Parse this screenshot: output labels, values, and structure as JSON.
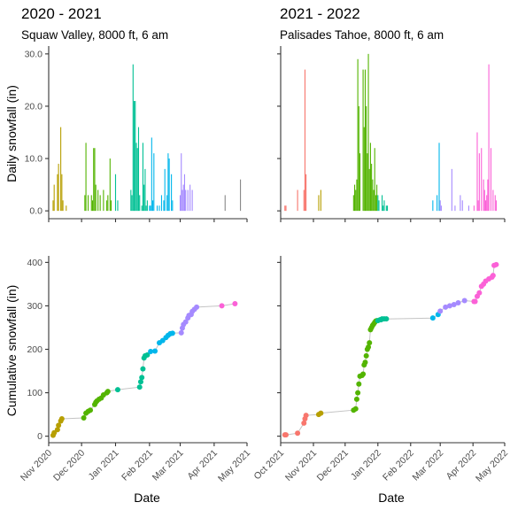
{
  "panels": [
    {
      "title": "2020 - 2021",
      "subtitle": "Squaw Valley, 8000 ft, 6 am"
    },
    {
      "title": "2021 - 2022",
      "subtitle": "Palisades Tahoe, 8000 ft, 6 am"
    }
  ],
  "chart_data": [
    {
      "type": "bar",
      "title": "2020 - 2021",
      "subtitle": "Squaw Valley, 8000 ft, 6 am",
      "xlabel": "",
      "ylabel": "Daily snowfall (in)",
      "ylim": [
        -1.5,
        31.5
      ],
      "yticks": [
        "0.0",
        "10.0",
        "20.0",
        "30.0"
      ],
      "xlim": [
        "2020-11-01",
        "2021-05-01"
      ],
      "colors_by_month": {
        "Nov": "#b79f00",
        "Dec": "#53b400",
        "Jan": "#00c094",
        "Feb": "#00b6eb",
        "Mar": "#a58aff"
      },
      "x": [
        "2020-11-05",
        "2020-11-06",
        "2020-11-09",
        "2020-11-10",
        "2020-11-12",
        "2020-11-13",
        "2020-11-14",
        "2020-11-17",
        "2020-12-04",
        "2020-12-05",
        "2020-12-07",
        "2020-12-10",
        "2020-12-11",
        "2020-12-12",
        "2020-12-13",
        "2020-12-14",
        "2020-12-16",
        "2020-12-18",
        "2020-12-21",
        "2020-12-24",
        "2020-12-25",
        "2020-12-27",
        "2020-12-28",
        "2021-01-01",
        "2021-01-03",
        "2021-01-15",
        "2021-01-16",
        "2021-01-17",
        "2021-01-18",
        "2021-01-19",
        "2021-01-20",
        "2021-01-21",
        "2021-01-22",
        "2021-01-23",
        "2021-01-25",
        "2021-01-26",
        "2021-01-27",
        "2021-01-28",
        "2021-01-29",
        "2021-01-30",
        "2021-02-01",
        "2021-02-02",
        "2021-02-03",
        "2021-02-04",
        "2021-02-05",
        "2021-02-08",
        "2021-02-10",
        "2021-02-12",
        "2021-02-14",
        "2021-02-15",
        "2021-02-17",
        "2021-02-18",
        "2021-02-19",
        "2021-02-21",
        "2021-02-22",
        "2021-03-01",
        "2021-03-02",
        "2021-03-03",
        "2021-03-04",
        "2021-03-05",
        "2021-03-06",
        "2021-03-08",
        "2021-03-10",
        "2021-03-12",
        "2021-04-11",
        "2021-04-25"
      ],
      "values": [
        2,
        5,
        7,
        9,
        16,
        7,
        2,
        1,
        3,
        13,
        3,
        3,
        2,
        12,
        12,
        5,
        4,
        3,
        4,
        2,
        3,
        10,
        2,
        7,
        2,
        4,
        3,
        28,
        21,
        21,
        13,
        12,
        16,
        3,
        1,
        13,
        5,
        8,
        1,
        2,
        1,
        1,
        14,
        2,
        11,
        1,
        1,
        3,
        2,
        8,
        3,
        11,
        10,
        7,
        2,
        3,
        11,
        4,
        5,
        7,
        4,
        4,
        5,
        4,
        3,
        6
      ]
    },
    {
      "type": "bar",
      "title": "2021 - 2022",
      "subtitle": "Palisades Tahoe, 8000 ft, 6 am",
      "xlabel": "",
      "ylabel": "Daily snowfall (in)",
      "ylim": [
        -1.5,
        31.5
      ],
      "yticks": [
        "0.0",
        "10.0",
        "20.0",
        "30.0"
      ],
      "xlim": [
        "2021-10-01",
        "2022-05-01"
      ],
      "colors_by_month": {
        "Oct": "#f8766d",
        "Nov": "#b79f00",
        "Dec": "#53b400",
        "Jan": "#00c094",
        "Feb": "#00b6eb",
        "Mar": "#a58aff",
        "Apr": "#fb61d7"
      },
      "x": [
        "2021-10-05",
        "2021-10-06",
        "2021-10-17",
        "2021-10-23",
        "2021-10-24",
        "2021-10-25",
        "2021-11-06",
        "2021-11-08",
        "2021-12-09",
        "2021-12-10",
        "2021-12-11",
        "2021-12-12",
        "2021-12-13",
        "2021-12-14",
        "2021-12-15",
        "2021-12-18",
        "2021-12-19",
        "2021-12-20",
        "2021-12-21",
        "2021-12-22",
        "2021-12-23",
        "2021-12-24",
        "2021-12-25",
        "2021-12-26",
        "2021-12-27",
        "2021-12-28",
        "2021-12-29",
        "2021-12-30",
        "2021-12-31",
        "2022-01-01",
        "2022-01-02",
        "2022-01-05",
        "2022-01-06",
        "2022-01-07",
        "2022-01-09",
        "2022-01-10",
        "2022-02-22",
        "2022-02-26",
        "2022-02-28",
        "2022-03-01",
        "2022-03-02",
        "2022-03-12",
        "2022-03-15",
        "2022-03-20",
        "2022-03-22",
        "2022-03-28",
        "2022-04-02",
        "2022-04-05",
        "2022-04-06",
        "2022-04-07",
        "2022-04-09",
        "2022-04-11",
        "2022-04-12",
        "2022-04-13",
        "2022-04-14",
        "2022-04-15",
        "2022-04-16",
        "2022-04-18",
        "2022-04-20",
        "2022-04-22",
        "2022-04-23"
      ],
      "values": [
        1,
        1,
        4,
        4,
        27,
        7,
        3,
        4,
        3,
        5,
        4,
        6,
        29,
        20,
        11,
        27,
        16,
        27,
        20,
        11,
        30,
        8,
        13,
        9,
        6,
        4,
        12,
        3,
        5,
        3,
        2,
        3,
        1,
        2,
        1,
        1,
        2,
        3,
        13,
        2,
        1,
        8,
        1,
        3,
        2,
        1,
        1,
        15,
        2,
        11,
        12,
        6,
        4,
        2,
        3,
        6,
        28,
        12,
        4,
        3,
        2
      ]
    },
    {
      "type": "scatter",
      "title": "2020 - 2021",
      "subtitle": "Squaw Valley, 8000 ft, 6 am",
      "xlabel": "Date",
      "ylabel": "Cumulative snowfall (in)",
      "ylim": [
        -15,
        415
      ],
      "yticks": [
        "0",
        "100",
        "200",
        "300",
        "400"
      ],
      "xticks": [
        "Nov 2020",
        "Dec 2020",
        "Jan 2021",
        "Feb 2021",
        "Mar 2021",
        "Apr 2021",
        "May 2021"
      ],
      "xlim": [
        "2020-11-01",
        "2021-05-01"
      ],
      "connecting_line_color": "#c4c4c4",
      "colors_by_month": {
        "Nov": "#b79f00",
        "Dec": "#53b400",
        "Jan": "#00c094",
        "Feb": "#00b6eb",
        "Mar": "#a58aff",
        "Apr": "#fb61d7"
      },
      "x": [
        "2020-11-05",
        "2020-11-06",
        "2020-11-09",
        "2020-11-10",
        "2020-11-12",
        "2020-11-13",
        "2020-12-03",
        "2020-12-05",
        "2020-12-07",
        "2020-12-09",
        "2020-12-13",
        "2020-12-14",
        "2020-12-15",
        "2020-12-17",
        "2020-12-19",
        "2020-12-21",
        "2020-12-24",
        "2020-12-25",
        "2021-01-03",
        "2021-01-23",
        "2021-01-24",
        "2021-01-25",
        "2021-01-26",
        "2021-01-27",
        "2021-01-28",
        "2021-01-30",
        "2021-02-02",
        "2021-02-06",
        "2021-02-10",
        "2021-02-13",
        "2021-02-16",
        "2021-02-18",
        "2021-02-20",
        "2021-02-22",
        "2021-03-02",
        "2021-03-03",
        "2021-03-04",
        "2021-03-06",
        "2021-03-08",
        "2021-03-09",
        "2021-03-11",
        "2021-03-12",
        "2021-03-14",
        "2021-03-16",
        "2021-04-08",
        "2021-04-20"
      ],
      "values": [
        2,
        8,
        15,
        25,
        35,
        40,
        42,
        53,
        57,
        60,
        73,
        78,
        81,
        85,
        88,
        95,
        100,
        103,
        107,
        113,
        125,
        135,
        155,
        180,
        185,
        187,
        195,
        196,
        215,
        220,
        227,
        232,
        236,
        237,
        238,
        249,
        257,
        263,
        272,
        278,
        280,
        287,
        292,
        297,
        300,
        305
      ]
    },
    {
      "type": "scatter",
      "title": "2021 - 2022",
      "subtitle": "Palisades Tahoe, 8000 ft, 6 am",
      "xlabel": "Date",
      "ylabel": "Cumulative snowfall (in)",
      "ylim": [
        -15,
        415
      ],
      "yticks": [
        "0",
        "100",
        "200",
        "300",
        "400"
      ],
      "xticks": [
        "Oct 2021",
        "Nov 2021",
        "Dec 2021",
        "Jan 2022",
        "Feb 2022",
        "Mar 2022",
        "Apr 2022",
        "May 2022"
      ],
      "xlim": [
        "2021-10-01",
        "2022-05-01"
      ],
      "connecting_line_color": "#c4c4c4",
      "colors_by_month": {
        "Oct": "#f8766d",
        "Nov": "#b79f00",
        "Dec": "#53b400",
        "Jan": "#00c094",
        "Feb": "#00b6eb",
        "Mar": "#a58aff",
        "Apr": "#fb61d7"
      },
      "x": [
        "2021-10-05",
        "2021-10-06",
        "2021-10-17",
        "2021-10-23",
        "2021-10-24",
        "2021-10-25",
        "2021-11-06",
        "2021-11-08",
        "2021-12-09",
        "2021-12-11",
        "2021-12-12",
        "2021-12-13",
        "2021-12-14",
        "2021-12-15",
        "2021-12-17",
        "2021-12-18",
        "2021-12-19",
        "2021-12-20",
        "2021-12-21",
        "2021-12-22",
        "2021-12-23",
        "2021-12-24",
        "2021-12-25",
        "2021-12-26",
        "2021-12-27",
        "2021-12-28",
        "2021-12-29",
        "2021-12-30",
        "2021-12-31",
        "2022-01-01",
        "2022-01-03",
        "2022-01-04",
        "2022-01-05",
        "2022-01-07",
        "2022-01-09",
        "2022-02-22",
        "2022-02-27",
        "2022-03-01",
        "2022-03-06",
        "2022-03-10",
        "2022-03-14",
        "2022-03-18",
        "2022-03-24",
        "2022-04-02",
        "2022-04-03",
        "2022-04-05",
        "2022-04-07",
        "2022-04-09",
        "2022-04-11",
        "2022-04-13",
        "2022-04-16",
        "2022-04-19",
        "2022-04-20",
        "2022-04-21",
        "2022-04-23"
      ],
      "values": [
        3,
        3,
        7,
        30,
        40,
        48,
        50,
        53,
        60,
        63,
        85,
        100,
        120,
        138,
        140,
        143,
        164,
        170,
        185,
        200,
        205,
        215,
        245,
        250,
        255,
        258,
        262,
        265,
        266,
        266,
        268,
        268,
        270,
        270,
        270,
        272,
        280,
        288,
        297,
        300,
        303,
        307,
        312,
        310,
        310,
        322,
        330,
        345,
        350,
        357,
        362,
        366,
        370,
        393,
        395
      ]
    }
  ]
}
